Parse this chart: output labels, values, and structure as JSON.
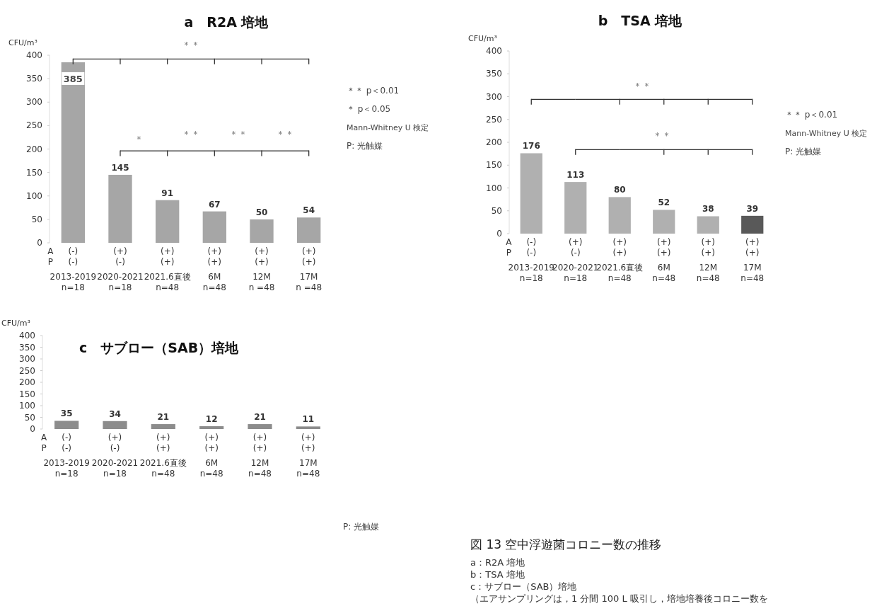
{
  "chart_data": [
    {
      "type": "bar",
      "title": "a　R2A 培地",
      "ylabel": "CFU/m³",
      "categories": [
        "(-)\n(-)\n2013-2019\nn=18",
        "(+)\n(-)\n2020-2021\nn=18",
        "(+)\n(+)\n2021.6直後\nn=48",
        "(+)\n(+)\n6M\nn=48",
        "(+)\n(+)\n12M\nn =48",
        "(+)\n(+)\n17M\nn =48"
      ],
      "values": [
        385,
        145,
        91,
        67,
        50,
        54
      ],
      "colors": [
        "#a6a6a6",
        "#a6a6a6",
        "#a6a6a6",
        "#a6a6a6",
        "#a6a6a6",
        "#a6a6a6"
      ],
      "ylim": [
        0,
        400
      ],
      "yticks": [
        0,
        50,
        100,
        150,
        200,
        250,
        300,
        350,
        400
      ],
      "data_labels": true,
      "grid": false,
      "annotations": [
        "A",
        "P",
        "＊＊",
        "＊",
        "＊＊",
        "＊＊",
        "＊＊",
        "＊＊ p＜0.01",
        "＊ p＜0.05",
        "Mann-Whitney U 検定",
        "P: 光触媒"
      ]
    },
    {
      "type": "bar",
      "title": "b　TSA 培地",
      "ylabel": "CFU/m³",
      "categories": [
        "(-)\n(-)\n2013-2019\nn=18",
        "(+)\n(-)\n2020-2021\nn=18",
        "(+)\n(+)\n2021.6直後\nn=48",
        "(+)\n(+)\n6M\nn=48",
        "(+)\n(+)\n12M\nn=48",
        "(+)\n(+)\n17M\nn=48"
      ],
      "values": [
        176,
        113,
        80,
        52,
        38,
        39
      ],
      "colors": [
        "#b0b0b0",
        "#b0b0b0",
        "#b0b0b0",
        "#b0b0b0",
        "#b0b0b0",
        "#595959"
      ],
      "ylim": [
        0,
        400
      ],
      "yticks": [
        0,
        50,
        100,
        150,
        200,
        250,
        300,
        350,
        400
      ],
      "data_labels": true,
      "grid": false,
      "annotations": [
        "A",
        "P",
        "＊＊",
        "＊＊",
        "＊＊ p＜0.01",
        "Mann-Whitney U 検定",
        "P: 光触媒"
      ]
    },
    {
      "type": "bar",
      "title": "c　サブロー（SAB）培地",
      "ylabel": "CFU/m³",
      "categories": [
        "(-)\n(-)\n2013-2019\nn=18",
        "(+)\n(-)\n2020-2021\nn=18",
        "(+)\n(+)\n2021.6直後\nn=48",
        "(+)\n(+)\n6M\nn=48",
        "(+)\n(+)\n12M\nn=48",
        "(+)\n(+)\n17M\nn=48"
      ],
      "values": [
        35,
        34,
        21,
        12,
        21,
        11
      ],
      "colors": [
        "#8c8c8c",
        "#8c8c8c",
        "#8c8c8c",
        "#8c8c8c",
        "#8c8c8c",
        "#8c8c8c"
      ],
      "ylim": [
        0,
        400
      ],
      "yticks": [
        0,
        50,
        100,
        150,
        200,
        250,
        300,
        350,
        400
      ],
      "data_labels": true,
      "grid": false,
      "annotations": [
        "A",
        "P",
        "P: 光触媒"
      ]
    },
    {
      "type": "other",
      "title": "図 13 空中浮遊菌コロニー数の推移",
      "annotations": [
        "a：R2A 培地",
        "b：TSA 培地",
        "c：サブロー（SAB）培地",
        "（エアサンプリングは，1 分間 100 L 吸引し，培地培養後コロニー数を"
      ]
    }
  ]
}
